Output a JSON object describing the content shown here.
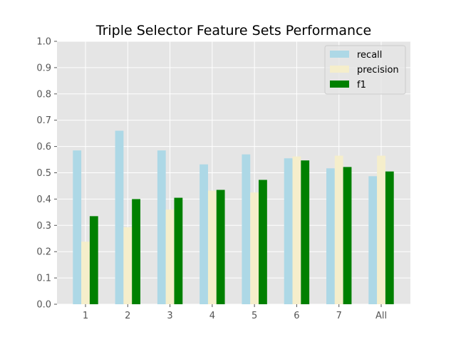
{
  "chart_data": {
    "type": "bar",
    "title": "Triple Selector Feature Sets Performance",
    "xlabel": "",
    "ylabel": "",
    "categories": [
      "1",
      "2",
      "3",
      "4",
      "5",
      "6",
      "7",
      "All"
    ],
    "ylim": [
      0.0,
      1.0
    ],
    "yticks": [
      "0.0",
      "0.1",
      "0.2",
      "0.3",
      "0.4",
      "0.5",
      "0.6",
      "0.7",
      "0.8",
      "0.9",
      "1.0"
    ],
    "grid": true,
    "legend_position": "top-right",
    "series": [
      {
        "name": "recall",
        "color": "#add8e6",
        "values": [
          0.585,
          0.66,
          0.585,
          0.532,
          0.57,
          0.555,
          0.517,
          0.487
        ]
      },
      {
        "name": "precision",
        "color": "#f5eecb",
        "values": [
          0.238,
          0.293,
          0.36,
          0.432,
          0.425,
          0.562,
          0.565,
          0.565
        ]
      },
      {
        "name": "f1",
        "color": "#008000",
        "values": [
          0.335,
          0.4,
          0.405,
          0.435,
          0.473,
          0.547,
          0.522,
          0.505
        ]
      }
    ],
    "colors": {
      "plot_background": "#e5e5e5",
      "grid": "#ffffff"
    }
  }
}
